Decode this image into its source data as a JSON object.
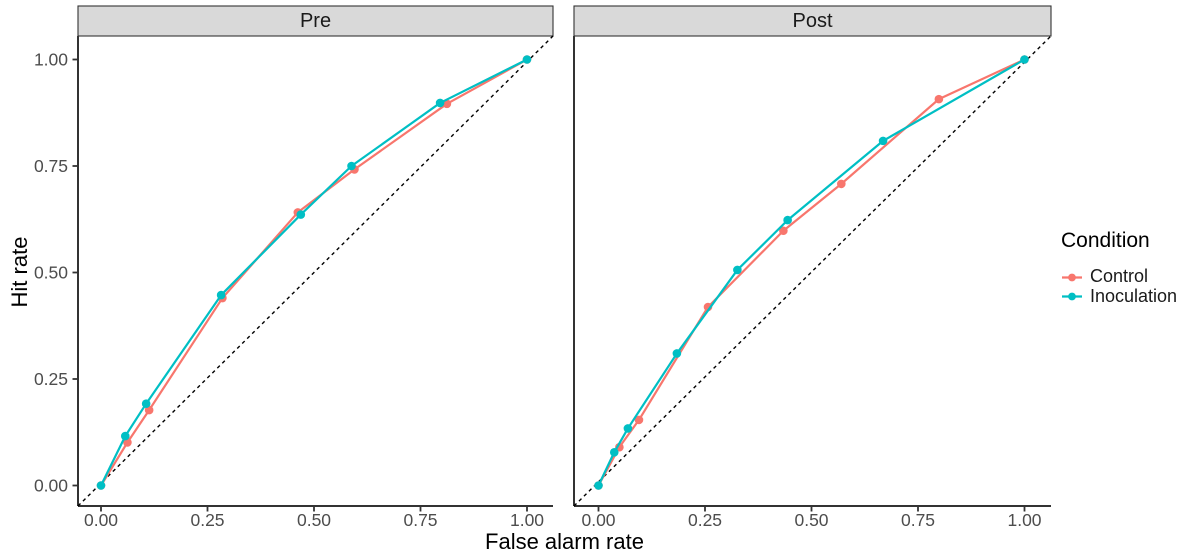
{
  "chart_data": {
    "type": "line",
    "title": "",
    "xlabel": "False alarm rate",
    "ylabel": "Hit rate",
    "xlim": [
      0,
      1
    ],
    "ylim": [
      0,
      1
    ],
    "grid": false,
    "x_ticks": [
      0,
      0.25,
      0.5,
      0.75,
      1
    ],
    "y_ticks": [
      0,
      0.25,
      0.5,
      0.75,
      1
    ],
    "x_tick_labels": [
      "0.00",
      "0.25",
      "0.50",
      "0.75",
      "1.00"
    ],
    "y_tick_labels": [
      "0.00",
      "0.25",
      "0.50",
      "0.75",
      "1.00"
    ],
    "reference_line": {
      "type": "diagonal",
      "style": "dashed",
      "color": "#000000",
      "from": [
        0,
        0
      ],
      "to": [
        1,
        1
      ]
    },
    "facets": [
      {
        "label": "Pre",
        "series": [
          {
            "name": "Control",
            "color": "#F8766D",
            "points": [
              [
                0,
                0
              ],
              [
                0.062,
                0.101
              ],
              [
                0.113,
                0.177
              ],
              [
                0.285,
                0.44
              ],
              [
                0.462,
                0.641
              ],
              [
                0.595,
                0.742
              ],
              [
                0.812,
                0.896
              ],
              [
                1,
                1
              ]
            ]
          },
          {
            "name": "Inoculation",
            "color": "#00BFC4",
            "points": [
              [
                0,
                0
              ],
              [
                0.057,
                0.116
              ],
              [
                0.106,
                0.192
              ],
              [
                0.282,
                0.447
              ],
              [
                0.469,
                0.636
              ],
              [
                0.588,
                0.75
              ],
              [
                0.796,
                0.898
              ],
              [
                1,
                1
              ]
            ]
          }
        ]
      },
      {
        "label": "Post",
        "series": [
          {
            "name": "Control",
            "color": "#F8766D",
            "points": [
              [
                0,
                0
              ],
              [
                0.049,
                0.09
              ],
              [
                0.095,
                0.154
              ],
              [
                0.257,
                0.419
              ],
              [
                0.434,
                0.598
              ],
              [
                0.57,
                0.708
              ],
              [
                0.799,
                0.907
              ],
              [
                1,
                1
              ]
            ]
          },
          {
            "name": "Inoculation",
            "color": "#00BFC4",
            "points": [
              [
                0,
                0
              ],
              [
                0.037,
                0.078
              ],
              [
                0.069,
                0.134
              ],
              [
                0.184,
                0.31
              ],
              [
                0.326,
                0.506
              ],
              [
                0.444,
                0.623
              ],
              [
                0.668,
                0.809
              ],
              [
                1,
                1
              ]
            ]
          }
        ]
      }
    ],
    "legend": {
      "title": "Condition",
      "position": "right",
      "entries": [
        {
          "label": "Control",
          "color": "#F8766D"
        },
        {
          "label": "Inoculation",
          "color": "#00BFC4"
        }
      ]
    }
  },
  "colors": {
    "control": "#F8766D",
    "inoculation": "#00BFC4",
    "strip_fill": "#D9D9D9",
    "strip_border": "#333333",
    "axis_line": "#333333",
    "tick_text": "#4d4d4d",
    "reference": "#000000",
    "background": "#ffffff"
  }
}
